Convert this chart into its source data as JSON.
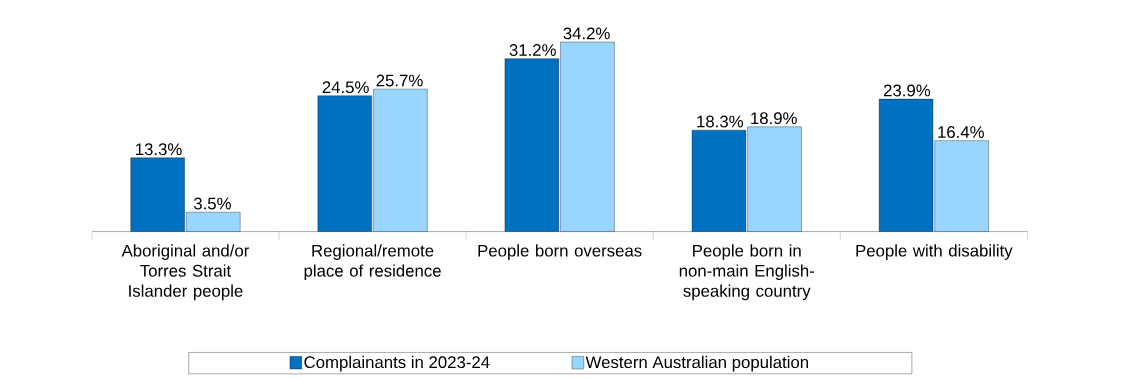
{
  "chart_data": {
    "type": "bar",
    "categories": [
      "Aboriginal and/or Torres Strait Islander people",
      "Regional/remote place of residence",
      "People born overseas",
      "People born in non-main English-speaking country",
      "People with disability"
    ],
    "series": [
      {
        "name": "Complainants in 2023-24",
        "color": "#0070c0",
        "values": [
          13.3,
          24.5,
          31.2,
          18.3,
          23.9
        ],
        "value_labels": [
          "13.3%",
          "24.5%",
          "31.2%",
          "18.3%",
          "23.9%"
        ]
      },
      {
        "name": "Western Australian population",
        "color": "#99d6ff",
        "values": [
          3.5,
          25.7,
          34.2,
          18.9,
          16.4
        ],
        "value_labels": [
          "3.5%",
          "25.7%",
          "34.2%",
          "18.9%",
          "16.4%"
        ]
      }
    ],
    "legend": "bottom",
    "grid": false
  }
}
